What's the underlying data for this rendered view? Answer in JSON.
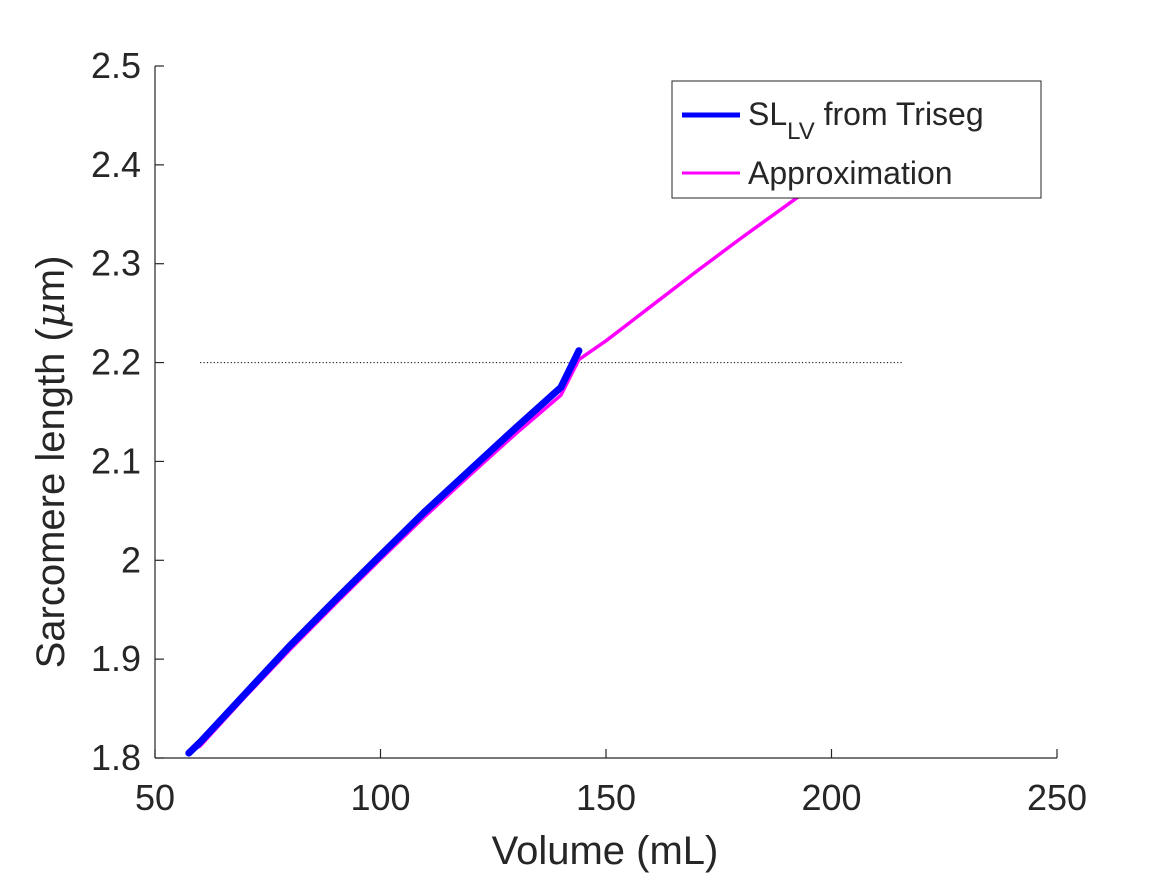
{
  "chart_data": {
    "type": "line",
    "xlabel": "Volume (mL)",
    "ylabel_main": "Sarcomere length (",
    "ylabel_mu": "μ",
    "ylabel_unit": "m)",
    "xlim": [
      50,
      250
    ],
    "ylim": [
      1.8,
      2.5
    ],
    "xticks": [
      50,
      100,
      150,
      200,
      250
    ],
    "yticks": [
      1.8,
      1.9,
      2.0,
      2.1,
      2.2,
      2.3,
      2.4,
      2.5
    ],
    "xtick_labels": [
      "50",
      "100",
      "150",
      "200",
      "250"
    ],
    "ytick_labels": [
      "1.8",
      "1.9",
      "2",
      "2.1",
      "2.2",
      "2.3",
      "2.4",
      "2.5"
    ],
    "grid": false,
    "legend_position": "top-right",
    "series": [
      {
        "name_main": "SL",
        "name_sub": "LV",
        "name_rest": " from Triseg",
        "color": "#0000ff",
        "style": "thick",
        "x": [
          57.5,
          60,
          70,
          80,
          90,
          100,
          110,
          120,
          130,
          140,
          144
        ],
        "y": [
          1.805,
          1.816,
          1.865,
          1.914,
          1.96,
          2.005,
          2.05,
          2.092,
          2.134,
          2.175,
          2.212
        ]
      },
      {
        "name": "Approximation",
        "color": "#ff00ff",
        "style": "line",
        "x": [
          59,
          60,
          70,
          80,
          90,
          100,
          110,
          120,
          130,
          140,
          144,
          150,
          160,
          170,
          180,
          190,
          200,
          210,
          216
        ],
        "y": [
          1.81,
          1.812,
          1.862,
          1.91,
          1.956,
          2.001,
          2.045,
          2.087,
          2.128,
          2.167,
          2.203,
          2.222,
          2.257,
          2.292,
          2.326,
          2.359,
          2.392,
          2.424,
          2.443
        ]
      }
    ],
    "reference_line": {
      "y": 2.2,
      "x": [
        60,
        216
      ],
      "color": "#000000",
      "style": "dotted"
    }
  }
}
